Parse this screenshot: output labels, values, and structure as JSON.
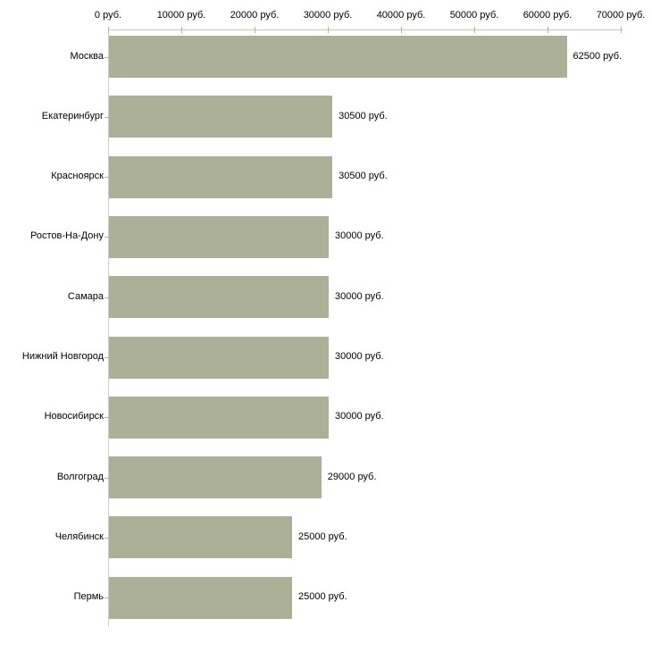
{
  "chart_data": {
    "type": "bar",
    "orientation": "horizontal",
    "title": "",
    "xlabel": "",
    "ylabel": "",
    "unit": "руб.",
    "categories": [
      "Москва",
      "Екатеринбург",
      "Красноярск",
      "Ростов-На-Дону",
      "Самара",
      "Нижний Новгород",
      "Новосибирск",
      "Волгоград",
      "Челябинск",
      "Пермь"
    ],
    "values": [
      62500,
      30500,
      30500,
      30000,
      30000,
      30000,
      30000,
      29000,
      25000,
      25000
    ],
    "value_labels": [
      "62500 руб.",
      "30500 руб.",
      "30500 руб.",
      "30000 руб.",
      "30000 руб.",
      "30000 руб.",
      "30000 руб.",
      "29000 руб.",
      "25000 руб.",
      "25000 руб."
    ],
    "x_ticks": [
      0,
      10000,
      20000,
      30000,
      40000,
      50000,
      60000,
      70000
    ],
    "x_tick_labels": [
      "0 руб.",
      "10000 руб.",
      "20000 руб.",
      "30000 руб.",
      "40000 руб.",
      "50000 руб.",
      "60000 руб.",
      "70000 руб."
    ],
    "xlim": [
      0,
      70000
    ],
    "grid": false,
    "legend": false,
    "axis_position": "top",
    "colors": {
      "bar_fill": "#abb096",
      "axis_line": "#c8c8ae",
      "y_axis_line": "#cccccc",
      "tick_mark": "#b2b292",
      "text": "#000000",
      "background": "#ffffff"
    }
  }
}
